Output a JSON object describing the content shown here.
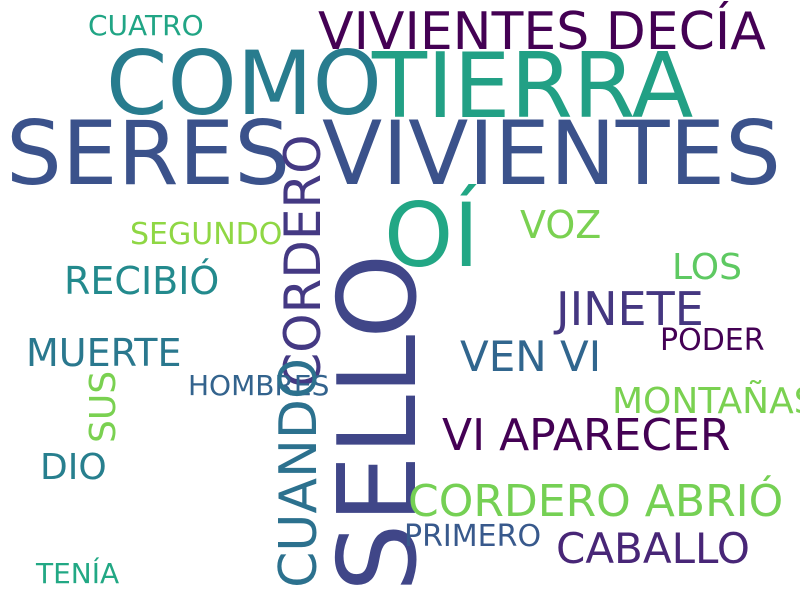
{
  "words": [
    {
      "key": "cuatro",
      "text": "CUATRO",
      "color": "#21a585"
    },
    {
      "key": "vivientes_decia",
      "text": "VIVIENTES DECÍA",
      "color": "#440154"
    },
    {
      "key": "como",
      "text": "COMO",
      "color": "#287c8e"
    },
    {
      "key": "tierra",
      "text": "TIERRA",
      "color": "#22a085"
    },
    {
      "key": "seres",
      "text": "SERES",
      "color": "#3b528b"
    },
    {
      "key": "vivientes",
      "text": "VIVIENTES",
      "color": "#3b528b"
    },
    {
      "key": "cordero",
      "text": "CORDERO",
      "color": "#443983"
    },
    {
      "key": "oi",
      "text": "OÍ",
      "color": "#22a785"
    },
    {
      "key": "voz",
      "text": "VOZ",
      "color": "#7ad151"
    },
    {
      "key": "segundo",
      "text": "SEGUNDO",
      "color": "#8fd744"
    },
    {
      "key": "los",
      "text": "LOS",
      "color": "#5ec962"
    },
    {
      "key": "recibio",
      "text": "RECIBIÓ",
      "color": "#238a8d"
    },
    {
      "key": "sello",
      "text": "SELLO",
      "color": "#404688"
    },
    {
      "key": "jinete",
      "text": "JINETE",
      "color": "#453781"
    },
    {
      "key": "poder",
      "text": "PODER",
      "color": "#440154"
    },
    {
      "key": "muerte",
      "text": "MUERTE",
      "color": "#2a788e"
    },
    {
      "key": "ven_vi",
      "text": "VEN VI",
      "color": "#31668e"
    },
    {
      "key": "hombres",
      "text": "HOMBRES",
      "color": "#33638d"
    },
    {
      "key": "sus",
      "text": "SUS",
      "color": "#7ad151"
    },
    {
      "key": "montanas",
      "text": "MONTAÑAS",
      "color": "#7ad151"
    },
    {
      "key": "vi_aparecer",
      "text": "VI APARECER",
      "color": "#440154"
    },
    {
      "key": "dio",
      "text": "DIO",
      "color": "#277f8e"
    },
    {
      "key": "cuando",
      "text": "CUANDO",
      "color": "#2c718e"
    },
    {
      "key": "cordero_abrio",
      "text": "CORDERO ABRIÓ",
      "color": "#75d054"
    },
    {
      "key": "primero",
      "text": "PRIMERO",
      "color": "#38598c"
    },
    {
      "key": "caballo",
      "text": "CABALLO",
      "color": "#482677"
    },
    {
      "key": "tenia",
      "text": "TENÍA",
      "color": "#22a884"
    }
  ]
}
